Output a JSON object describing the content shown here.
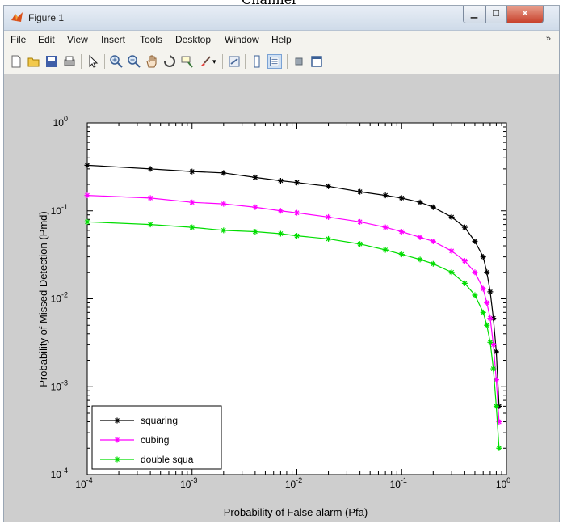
{
  "page_caption": "Channel",
  "window": {
    "title": "Figure 1"
  },
  "menu": [
    "File",
    "Edit",
    "View",
    "Insert",
    "Tools",
    "Desktop",
    "Window",
    "Help"
  ],
  "toolbar_icons": [
    "new-figure-icon",
    "open-file-icon",
    "save-icon",
    "print-icon",
    "pointer-icon",
    "zoom-in-icon",
    "zoom-out-icon",
    "pan-icon",
    "rotate-icon",
    "data-cursor-icon",
    "brush-icon",
    "link-icon",
    "colorbar-icon",
    "legend-icon",
    "hide-tools-icon",
    "dock-icon"
  ],
  "colors": {
    "squaring": "#000000",
    "cubing": "#ff00ff",
    "double": "#00dd00",
    "figure_bg": "#cecece"
  },
  "chart_data": {
    "type": "line",
    "xscale": "log",
    "yscale": "log",
    "xlim": [
      0.0001,
      1
    ],
    "ylim": [
      0.0001,
      1
    ],
    "xlabel": "Probability of False alarm (Pfa)",
    "ylabel": "Probability of Missed Detection (Pmd)",
    "x_ticks": [
      {
        "base": "10",
        "exp": "-4"
      },
      {
        "base": "10",
        "exp": "-3"
      },
      {
        "base": "10",
        "exp": "-2"
      },
      {
        "base": "10",
        "exp": "-1"
      },
      {
        "base": "10",
        "exp": "0"
      }
    ],
    "y_ticks": [
      {
        "base": "10",
        "exp": "-4"
      },
      {
        "base": "10",
        "exp": "-3"
      },
      {
        "base": "10",
        "exp": "-2"
      },
      {
        "base": "10",
        "exp": "-1"
      },
      {
        "base": "10",
        "exp": "0"
      }
    ],
    "legend_position": "bottom-left",
    "x": [
      0.0001,
      0.0004,
      0.001,
      0.002,
      0.004,
      0.007,
      0.01,
      0.02,
      0.04,
      0.07,
      0.1,
      0.15,
      0.2,
      0.3,
      0.4,
      0.5,
      0.6,
      0.65,
      0.7,
      0.75,
      0.8,
      0.85
    ],
    "series": [
      {
        "name": "squaring",
        "values": [
          0.33,
          0.3,
          0.28,
          0.27,
          0.24,
          0.22,
          0.21,
          0.19,
          0.165,
          0.15,
          0.14,
          0.125,
          0.11,
          0.085,
          0.065,
          0.045,
          0.03,
          0.02,
          0.012,
          0.006,
          0.0025,
          0.0006
        ]
      },
      {
        "name": "cubing",
        "values": [
          0.15,
          0.14,
          0.125,
          0.12,
          0.11,
          0.1,
          0.095,
          0.085,
          0.075,
          0.065,
          0.058,
          0.05,
          0.045,
          0.035,
          0.027,
          0.02,
          0.013,
          0.009,
          0.006,
          0.003,
          0.0012,
          0.0004
        ]
      },
      {
        "name": "double squa",
        "values": [
          0.075,
          0.07,
          0.065,
          0.06,
          0.058,
          0.055,
          0.052,
          0.048,
          0.042,
          0.036,
          0.032,
          0.028,
          0.025,
          0.02,
          0.015,
          0.011,
          0.007,
          0.005,
          0.0032,
          0.0016,
          0.0006,
          0.0002
        ]
      }
    ]
  }
}
